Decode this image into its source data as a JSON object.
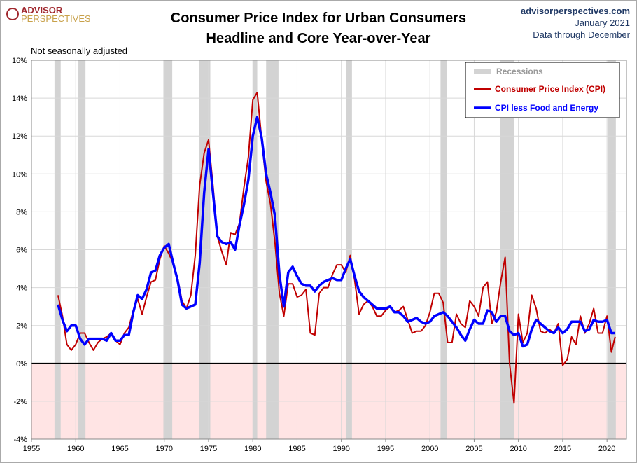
{
  "header": {
    "logo_top": "ADVISOR",
    "logo_bottom": "PERSPECTIVES",
    "site": "advisorperspectives.com",
    "date": "January 2021",
    "note": "Data through December"
  },
  "chart_data": {
    "type": "line",
    "title": "Consumer Price Index for Urban Consumers",
    "subtitle": "Headline and Core Year-over-Year",
    "annotation": "Not seasonally adjusted",
    "xlim": [
      1955,
      2022.2
    ],
    "xticks": [
      1955,
      1960,
      1965,
      1970,
      1975,
      1980,
      1985,
      1990,
      1995,
      2000,
      2005,
      2010,
      2015,
      2020
    ],
    "ylim": [
      -4,
      16
    ],
    "yticks": [
      {
        "value": -4,
        "label": "-4%"
      },
      {
        "value": -2,
        "label": "-2%"
      },
      {
        "value": 0,
        "label": "0%"
      },
      {
        "value": 2,
        "label": "2%"
      },
      {
        "value": 4,
        "label": "4%"
      },
      {
        "value": 6,
        "label": "6%"
      },
      {
        "value": 8,
        "label": "8%"
      },
      {
        "value": 10,
        "label": "10%"
      },
      {
        "value": 12,
        "label": "12%"
      },
      {
        "value": 14,
        "label": "14%"
      },
      {
        "value": 16,
        "label": "16%"
      }
    ],
    "grid": true,
    "legend": "upper right",
    "recession_label": "Recessions",
    "recession_color": "#d3d3d3",
    "recessions": [
      [
        1957.6,
        1958.3
      ],
      [
        1960.3,
        1961.1
      ],
      [
        1969.9,
        1970.9
      ],
      [
        1973.9,
        1975.2
      ],
      [
        1980.0,
        1980.5
      ],
      [
        1981.5,
        1982.9
      ],
      [
        1990.5,
        1991.2
      ],
      [
        2001.2,
        2001.9
      ],
      [
        2007.9,
        2009.5
      ],
      [
        2020.1,
        2021.0
      ]
    ],
    "x": [
      1958.0,
      1958.5,
      1959.0,
      1959.5,
      1960.0,
      1960.5,
      1961.0,
      1961.5,
      1962.0,
      1962.5,
      1963.0,
      1963.5,
      1964.0,
      1964.5,
      1965.0,
      1965.5,
      1966.0,
      1966.5,
      1967.0,
      1967.5,
      1968.0,
      1968.5,
      1969.0,
      1969.5,
      1970.0,
      1970.5,
      1971.0,
      1971.5,
      1972.0,
      1972.5,
      1973.0,
      1973.5,
      1974.0,
      1974.5,
      1975.0,
      1975.5,
      1976.0,
      1976.5,
      1977.0,
      1977.5,
      1978.0,
      1978.5,
      1979.0,
      1979.5,
      1980.0,
      1980.5,
      1981.0,
      1981.5,
      1982.0,
      1982.5,
      1983.0,
      1983.5,
      1984.0,
      1984.5,
      1985.0,
      1985.5,
      1986.0,
      1986.5,
      1987.0,
      1987.5,
      1988.0,
      1988.5,
      1989.0,
      1989.5,
      1990.0,
      1990.5,
      1991.0,
      1991.5,
      1992.0,
      1992.5,
      1993.0,
      1993.5,
      1994.0,
      1994.5,
      1995.0,
      1995.5,
      1996.0,
      1996.5,
      1997.0,
      1997.5,
      1998.0,
      1998.5,
      1999.0,
      1999.5,
      2000.0,
      2000.5,
      2001.0,
      2001.5,
      2002.0,
      2002.5,
      2003.0,
      2003.5,
      2004.0,
      2004.5,
      2005.0,
      2005.5,
      2006.0,
      2006.5,
      2007.0,
      2007.5,
      2008.0,
      2008.5,
      2009.0,
      2009.5,
      2010.0,
      2010.5,
      2011.0,
      2011.5,
      2012.0,
      2012.5,
      2013.0,
      2013.5,
      2014.0,
      2014.5,
      2015.0,
      2015.5,
      2016.0,
      2016.5,
      2017.0,
      2017.5,
      2018.0,
      2018.5,
      2019.0,
      2019.5,
      2020.0,
      2020.5,
      2020.92
    ],
    "series": [
      {
        "name": "Consumer Price Index (CPI)",
        "color": "#c00000",
        "width": 2,
        "values": [
          3.6,
          2.5,
          1.0,
          0.7,
          1.0,
          1.6,
          1.6,
          1.1,
          0.7,
          1.1,
          1.3,
          1.4,
          1.6,
          1.2,
          1.0,
          1.6,
          1.9,
          2.8,
          3.4,
          2.6,
          3.5,
          4.3,
          4.4,
          5.5,
          6.2,
          5.8,
          5.3,
          4.5,
          3.3,
          2.9,
          3.6,
          5.7,
          9.4,
          11.1,
          11.8,
          9.4,
          6.7,
          5.9,
          5.2,
          6.9,
          6.8,
          7.4,
          9.3,
          10.9,
          13.9,
          14.3,
          11.8,
          9.6,
          8.4,
          6.4,
          3.7,
          2.5,
          4.2,
          4.2,
          3.5,
          3.6,
          3.9,
          1.6,
          1.5,
          3.7,
          4.0,
          4.0,
          4.7,
          5.2,
          5.2,
          4.8,
          5.7,
          4.4,
          2.6,
          3.1,
          3.3,
          3.0,
          2.5,
          2.5,
          2.8,
          3.0,
          2.7,
          2.8,
          3.0,
          2.3,
          1.6,
          1.7,
          1.7,
          2.0,
          2.7,
          3.7,
          3.7,
          3.2,
          1.1,
          1.1,
          2.6,
          2.1,
          1.9,
          3.3,
          3.0,
          2.5,
          4.0,
          4.3,
          2.1,
          2.7,
          4.3,
          5.6,
          0.0,
          -2.1,
          2.6,
          1.1,
          1.6,
          3.6,
          2.9,
          1.7,
          1.6,
          1.8,
          1.6,
          2.1,
          -0.1,
          0.2,
          1.4,
          1.0,
          2.5,
          1.6,
          2.1,
          2.9,
          1.6,
          1.6,
          2.5,
          0.6,
          1.4
        ]
      },
      {
        "name": "CPI less Food and Energy",
        "color": "#0000ff",
        "width": 3.5,
        "values": [
          3.1,
          2.3,
          1.7,
          2.0,
          2.0,
          1.3,
          1.0,
          1.3,
          1.3,
          1.3,
          1.3,
          1.2,
          1.6,
          1.2,
          1.2,
          1.5,
          1.5,
          2.7,
          3.6,
          3.4,
          3.9,
          4.8,
          4.9,
          5.7,
          6.1,
          6.3,
          5.3,
          4.4,
          3.1,
          2.9,
          3.0,
          3.1,
          5.3,
          9.0,
          11.3,
          9.0,
          6.7,
          6.4,
          6.3,
          6.4,
          6.0,
          7.3,
          8.4,
          9.7,
          12.0,
          13.0,
          11.9,
          10.0,
          9.0,
          7.8,
          4.7,
          3.0,
          4.8,
          5.1,
          4.6,
          4.2,
          4.1,
          4.1,
          3.8,
          4.1,
          4.3,
          4.4,
          4.5,
          4.4,
          4.4,
          5.0,
          5.5,
          4.6,
          3.8,
          3.5,
          3.3,
          3.1,
          2.9,
          2.9,
          2.9,
          3.0,
          2.7,
          2.7,
          2.5,
          2.2,
          2.3,
          2.4,
          2.2,
          2.1,
          2.2,
          2.5,
          2.6,
          2.7,
          2.5,
          2.2,
          1.9,
          1.5,
          1.2,
          1.8,
          2.3,
          2.1,
          2.1,
          2.8,
          2.7,
          2.2,
          2.5,
          2.5,
          1.7,
          1.5,
          1.6,
          0.9,
          1.0,
          1.8,
          2.3,
          2.1,
          1.9,
          1.7,
          1.6,
          1.9,
          1.6,
          1.8,
          2.2,
          2.2,
          2.2,
          1.7,
          1.8,
          2.3,
          2.2,
          2.2,
          2.3,
          1.6,
          1.6
        ]
      }
    ]
  }
}
